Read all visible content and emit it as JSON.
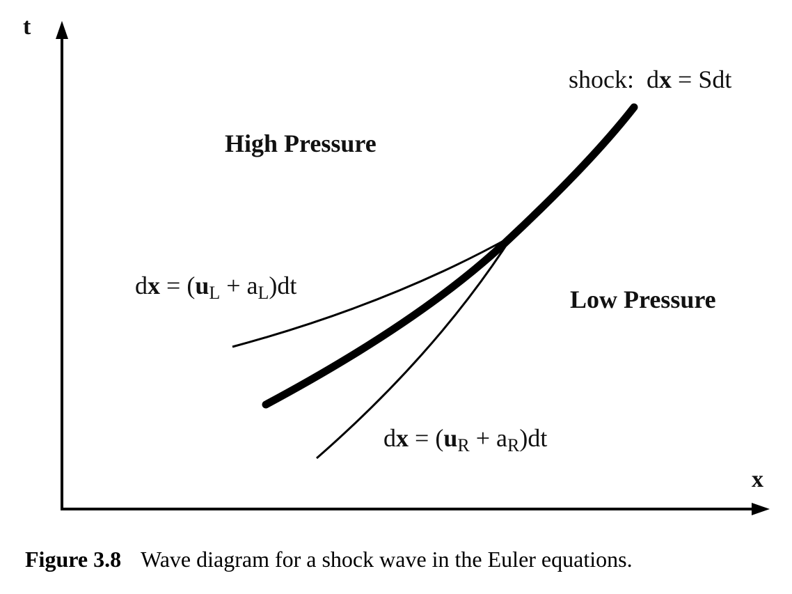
{
  "axes": {
    "t_label": "t",
    "x_label": "x"
  },
  "regions": {
    "high": "High Pressure",
    "low": "Low Pressure"
  },
  "shock_label": {
    "prefix": "shock:",
    "lhs_d": "d",
    "lhs_x": "x",
    "eq": "=",
    "rhs": "Sdt"
  },
  "left_characteristic": {
    "lhs_d": "d",
    "lhs_x": "x",
    "eq": "=",
    "open": "(",
    "u": "u",
    "u_sub": "L",
    "plus": "+",
    "a": "a",
    "a_sub": "L",
    "close": ")dt"
  },
  "right_characteristic": {
    "lhs_d": "d",
    "lhs_x": "x",
    "eq": "=",
    "open": "(",
    "u": "u",
    "u_sub": "R",
    "plus": "+",
    "a": "a",
    "a_sub": "R",
    "close": ")dt"
  },
  "caption": {
    "number": "Figure 3.8",
    "text": "Wave diagram for a shock wave in the Euler equations."
  }
}
